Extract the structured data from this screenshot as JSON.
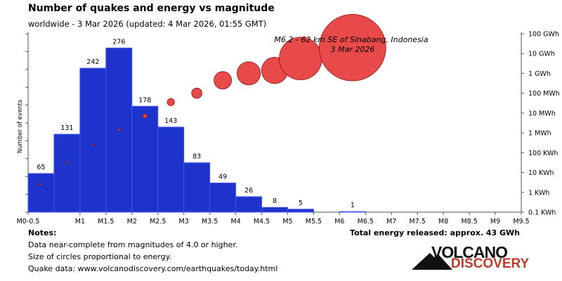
{
  "header": {
    "title": "Number of quakes and energy vs magnitude",
    "subtitle": "worldwide -  3 Mar 2026 (updated: 4 Mar 2026, 01:55 GMT)"
  },
  "notes": {
    "heading": "Notes:",
    "line1": "Data near-complete from magnitudes of 4.0 or higher.",
    "line2": "Size of circles proportional to energy.",
    "line3": "Quake data: www.volcanodiscovery.com/earthquakes/today.html"
  },
  "total_energy": "Total energy released: approx. 43 GWh",
  "logo": {
    "top": "VOLCANO",
    "bottom": "DISCOVERY"
  },
  "colors": {
    "bar": "#1e32cc",
    "bar_edge": "#4455ee",
    "bubble": "#e84a4a",
    "bubble_edge": "#8a1111",
    "grid": "#555555"
  },
  "chart_data": {
    "type": "bar",
    "title": "Number of quakes and energy vs magnitude",
    "ylabel": "Number of events",
    "ylabel_right": "",
    "x_tick_labels": [
      "M0-0.5",
      "M1",
      "M1.5",
      "M2",
      "M2.5",
      "M3",
      "M3.5",
      "M4",
      "M4.5",
      "M5",
      "M5.5",
      "M6",
      "M6.5",
      "M7",
      "M7.5",
      "M8",
      "M8.5",
      "M9",
      "M9.5"
    ],
    "xlim": [
      0,
      9.5
    ],
    "bars": [
      {
        "bin": [
          0.0,
          0.5
        ],
        "count": 65
      },
      {
        "bin": [
          0.5,
          1.0
        ],
        "count": 131
      },
      {
        "bin": [
          1.0,
          1.5
        ],
        "count": 242
      },
      {
        "bin": [
          1.5,
          2.0
        ],
        "count": 276
      },
      {
        "bin": [
          2.0,
          2.5
        ],
        "count": 178
      },
      {
        "bin": [
          2.5,
          3.0
        ],
        "count": 143
      },
      {
        "bin": [
          3.0,
          3.5
        ],
        "count": 83
      },
      {
        "bin": [
          3.5,
          4.0
        ],
        "count": 49
      },
      {
        "bin": [
          4.0,
          4.5
        ],
        "count": 26
      },
      {
        "bin": [
          4.5,
          5.0
        ],
        "count": 8
      },
      {
        "bin": [
          5.0,
          5.5
        ],
        "count": 5
      },
      {
        "bin": [
          6.0,
          6.5
        ],
        "count": 1
      }
    ],
    "count_ylim": [
      0,
      300
    ],
    "energy_axis_labels": [
      "0.1 KWh",
      "1 KWh",
      "10 KWh",
      "100 KWh",
      "1 MWh",
      "10 MWh",
      "100 MWh",
      "1 GWh",
      "10 GWh",
      "100 GWh"
    ],
    "energy_axis_log10_kwh": [
      -1,
      0,
      1,
      2,
      3,
      4,
      5,
      6,
      7,
      8
    ],
    "energy_points": [
      {
        "magnitude": 0.25,
        "log10_kwh": 0.4
      },
      {
        "magnitude": 0.75,
        "log10_kwh": 1.5
      },
      {
        "magnitude": 1.25,
        "log10_kwh": 2.4
      },
      {
        "magnitude": 1.75,
        "log10_kwh": 3.15
      },
      {
        "magnitude": 2.25,
        "log10_kwh": 3.85
      },
      {
        "magnitude": 2.75,
        "log10_kwh": 4.55
      },
      {
        "magnitude": 3.25,
        "log10_kwh": 5.0
      },
      {
        "magnitude": 3.75,
        "log10_kwh": 5.65
      },
      {
        "magnitude": 4.25,
        "log10_kwh": 6.0
      },
      {
        "magnitude": 4.75,
        "log10_kwh": 6.15
      },
      {
        "magnitude": 5.25,
        "log10_kwh": 6.75
      },
      {
        "magnitude": 6.25,
        "log10_kwh": 7.3
      }
    ],
    "annotation": {
      "line1": "M6.2 - 62 km SE of Sinabang, Indonesia",
      "line2": "3 Mar 2026"
    }
  }
}
